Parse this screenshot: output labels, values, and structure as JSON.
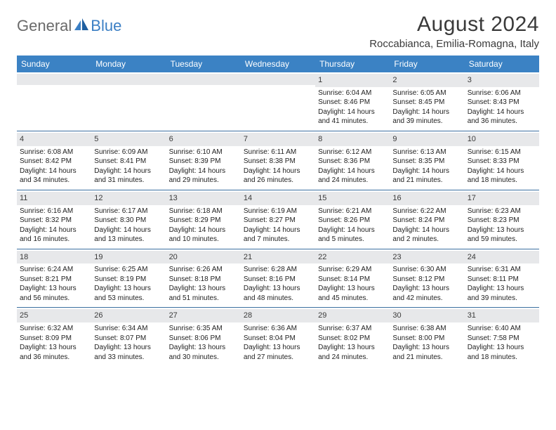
{
  "logo": {
    "gray_text": "General",
    "blue_text": "Blue"
  },
  "title": "August 2024",
  "location": "Roccabianca, Emilia-Romagna, Italy",
  "colors": {
    "header_bg": "#3b82c4",
    "header_text": "#ffffff",
    "row_border": "#3b6fa0",
    "daynum_bg": "#e7e8ea",
    "logo_gray": "#6a6a6a",
    "logo_blue": "#3b7fc4",
    "body_text": "#222222"
  },
  "days_of_week": [
    "Sunday",
    "Monday",
    "Tuesday",
    "Wednesday",
    "Thursday",
    "Friday",
    "Saturday"
  ],
  "weeks": [
    [
      {
        "empty": true
      },
      {
        "empty": true
      },
      {
        "empty": true
      },
      {
        "empty": true
      },
      {
        "day": "1",
        "sunrise": "Sunrise: 6:04 AM",
        "sunset": "Sunset: 8:46 PM",
        "daylight1": "Daylight: 14 hours",
        "daylight2": "and 41 minutes."
      },
      {
        "day": "2",
        "sunrise": "Sunrise: 6:05 AM",
        "sunset": "Sunset: 8:45 PM",
        "daylight1": "Daylight: 14 hours",
        "daylight2": "and 39 minutes."
      },
      {
        "day": "3",
        "sunrise": "Sunrise: 6:06 AM",
        "sunset": "Sunset: 8:43 PM",
        "daylight1": "Daylight: 14 hours",
        "daylight2": "and 36 minutes."
      }
    ],
    [
      {
        "day": "4",
        "sunrise": "Sunrise: 6:08 AM",
        "sunset": "Sunset: 8:42 PM",
        "daylight1": "Daylight: 14 hours",
        "daylight2": "and 34 minutes."
      },
      {
        "day": "5",
        "sunrise": "Sunrise: 6:09 AM",
        "sunset": "Sunset: 8:41 PM",
        "daylight1": "Daylight: 14 hours",
        "daylight2": "and 31 minutes."
      },
      {
        "day": "6",
        "sunrise": "Sunrise: 6:10 AM",
        "sunset": "Sunset: 8:39 PM",
        "daylight1": "Daylight: 14 hours",
        "daylight2": "and 29 minutes."
      },
      {
        "day": "7",
        "sunrise": "Sunrise: 6:11 AM",
        "sunset": "Sunset: 8:38 PM",
        "daylight1": "Daylight: 14 hours",
        "daylight2": "and 26 minutes."
      },
      {
        "day": "8",
        "sunrise": "Sunrise: 6:12 AM",
        "sunset": "Sunset: 8:36 PM",
        "daylight1": "Daylight: 14 hours",
        "daylight2": "and 24 minutes."
      },
      {
        "day": "9",
        "sunrise": "Sunrise: 6:13 AM",
        "sunset": "Sunset: 8:35 PM",
        "daylight1": "Daylight: 14 hours",
        "daylight2": "and 21 minutes."
      },
      {
        "day": "10",
        "sunrise": "Sunrise: 6:15 AM",
        "sunset": "Sunset: 8:33 PM",
        "daylight1": "Daylight: 14 hours",
        "daylight2": "and 18 minutes."
      }
    ],
    [
      {
        "day": "11",
        "sunrise": "Sunrise: 6:16 AM",
        "sunset": "Sunset: 8:32 PM",
        "daylight1": "Daylight: 14 hours",
        "daylight2": "and 16 minutes."
      },
      {
        "day": "12",
        "sunrise": "Sunrise: 6:17 AM",
        "sunset": "Sunset: 8:30 PM",
        "daylight1": "Daylight: 14 hours",
        "daylight2": "and 13 minutes."
      },
      {
        "day": "13",
        "sunrise": "Sunrise: 6:18 AM",
        "sunset": "Sunset: 8:29 PM",
        "daylight1": "Daylight: 14 hours",
        "daylight2": "and 10 minutes."
      },
      {
        "day": "14",
        "sunrise": "Sunrise: 6:19 AM",
        "sunset": "Sunset: 8:27 PM",
        "daylight1": "Daylight: 14 hours",
        "daylight2": "and 7 minutes."
      },
      {
        "day": "15",
        "sunrise": "Sunrise: 6:21 AM",
        "sunset": "Sunset: 8:26 PM",
        "daylight1": "Daylight: 14 hours",
        "daylight2": "and 5 minutes."
      },
      {
        "day": "16",
        "sunrise": "Sunrise: 6:22 AM",
        "sunset": "Sunset: 8:24 PM",
        "daylight1": "Daylight: 14 hours",
        "daylight2": "and 2 minutes."
      },
      {
        "day": "17",
        "sunrise": "Sunrise: 6:23 AM",
        "sunset": "Sunset: 8:23 PM",
        "daylight1": "Daylight: 13 hours",
        "daylight2": "and 59 minutes."
      }
    ],
    [
      {
        "day": "18",
        "sunrise": "Sunrise: 6:24 AM",
        "sunset": "Sunset: 8:21 PM",
        "daylight1": "Daylight: 13 hours",
        "daylight2": "and 56 minutes."
      },
      {
        "day": "19",
        "sunrise": "Sunrise: 6:25 AM",
        "sunset": "Sunset: 8:19 PM",
        "daylight1": "Daylight: 13 hours",
        "daylight2": "and 53 minutes."
      },
      {
        "day": "20",
        "sunrise": "Sunrise: 6:26 AM",
        "sunset": "Sunset: 8:18 PM",
        "daylight1": "Daylight: 13 hours",
        "daylight2": "and 51 minutes."
      },
      {
        "day": "21",
        "sunrise": "Sunrise: 6:28 AM",
        "sunset": "Sunset: 8:16 PM",
        "daylight1": "Daylight: 13 hours",
        "daylight2": "and 48 minutes."
      },
      {
        "day": "22",
        "sunrise": "Sunrise: 6:29 AM",
        "sunset": "Sunset: 8:14 PM",
        "daylight1": "Daylight: 13 hours",
        "daylight2": "and 45 minutes."
      },
      {
        "day": "23",
        "sunrise": "Sunrise: 6:30 AM",
        "sunset": "Sunset: 8:12 PM",
        "daylight1": "Daylight: 13 hours",
        "daylight2": "and 42 minutes."
      },
      {
        "day": "24",
        "sunrise": "Sunrise: 6:31 AM",
        "sunset": "Sunset: 8:11 PM",
        "daylight1": "Daylight: 13 hours",
        "daylight2": "and 39 minutes."
      }
    ],
    [
      {
        "day": "25",
        "sunrise": "Sunrise: 6:32 AM",
        "sunset": "Sunset: 8:09 PM",
        "daylight1": "Daylight: 13 hours",
        "daylight2": "and 36 minutes."
      },
      {
        "day": "26",
        "sunrise": "Sunrise: 6:34 AM",
        "sunset": "Sunset: 8:07 PM",
        "daylight1": "Daylight: 13 hours",
        "daylight2": "and 33 minutes."
      },
      {
        "day": "27",
        "sunrise": "Sunrise: 6:35 AM",
        "sunset": "Sunset: 8:06 PM",
        "daylight1": "Daylight: 13 hours",
        "daylight2": "and 30 minutes."
      },
      {
        "day": "28",
        "sunrise": "Sunrise: 6:36 AM",
        "sunset": "Sunset: 8:04 PM",
        "daylight1": "Daylight: 13 hours",
        "daylight2": "and 27 minutes."
      },
      {
        "day": "29",
        "sunrise": "Sunrise: 6:37 AM",
        "sunset": "Sunset: 8:02 PM",
        "daylight1": "Daylight: 13 hours",
        "daylight2": "and 24 minutes."
      },
      {
        "day": "30",
        "sunrise": "Sunrise: 6:38 AM",
        "sunset": "Sunset: 8:00 PM",
        "daylight1": "Daylight: 13 hours",
        "daylight2": "and 21 minutes."
      },
      {
        "day": "31",
        "sunrise": "Sunrise: 6:40 AM",
        "sunset": "Sunset: 7:58 PM",
        "daylight1": "Daylight: 13 hours",
        "daylight2": "and 18 minutes."
      }
    ]
  ]
}
